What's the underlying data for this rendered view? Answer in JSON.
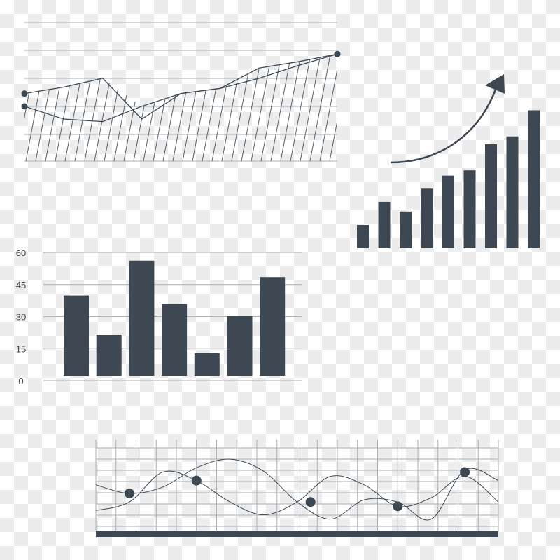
{
  "colors": {
    "ink": "#3d4852",
    "grid": "#a9afb5",
    "hatch": "#55606a"
  },
  "chart_data": [
    {
      "type": "line",
      "title": "",
      "x": [
        0,
        1,
        2,
        3,
        4,
        5,
        6,
        7,
        8
      ],
      "series": [
        {
          "values": [
            133,
            138,
            145,
            113,
            133,
            137,
            145,
            155,
            164
          ]
        },
        {
          "values": [
            123,
            113,
            111,
            123,
            133,
            137,
            153,
            158,
            164
          ]
        }
      ],
      "ylim": [
        80,
        190
      ],
      "grid": true,
      "hatched_fill": true
    },
    {
      "type": "bar",
      "title": "",
      "values": [
        18,
        36,
        28,
        46,
        56,
        60,
        80,
        86,
        106
      ],
      "ylim": [
        0,
        110
      ],
      "trend_arrow": "up"
    },
    {
      "type": "bar",
      "title": "",
      "values": [
        39,
        20,
        56,
        35,
        11,
        29,
        48
      ],
      "yticks": [
        "0",
        "15",
        "30",
        "45",
        "60"
      ],
      "ylim": [
        0,
        60
      ],
      "grid": true
    },
    {
      "type": "line",
      "title": "",
      "x": [
        0,
        1,
        2,
        3,
        4,
        5,
        6,
        7,
        8,
        9,
        10,
        11,
        12
      ],
      "series": [
        {
          "values": [
            2,
            0,
            1.5,
            6,
            8,
            5.2,
            -2,
            -6,
            -1.5,
            -2,
            -6,
            5.5,
            3
          ]
        },
        {
          "values": [
            -4,
            -2,
            5,
            3,
            -2,
            -5,
            -2,
            4,
            2,
            -3,
            -1,
            4,
            -2
          ]
        }
      ],
      "markers": [
        {
          "x": 1,
          "y": 0
        },
        {
          "x": 3,
          "y": 3
        },
        {
          "x": 6.4,
          "y": -2
        },
        {
          "x": 9,
          "y": -3
        },
        {
          "x": 11,
          "y": 5
        }
      ],
      "ylim": [
        -9,
        9
      ],
      "grid": true
    }
  ]
}
